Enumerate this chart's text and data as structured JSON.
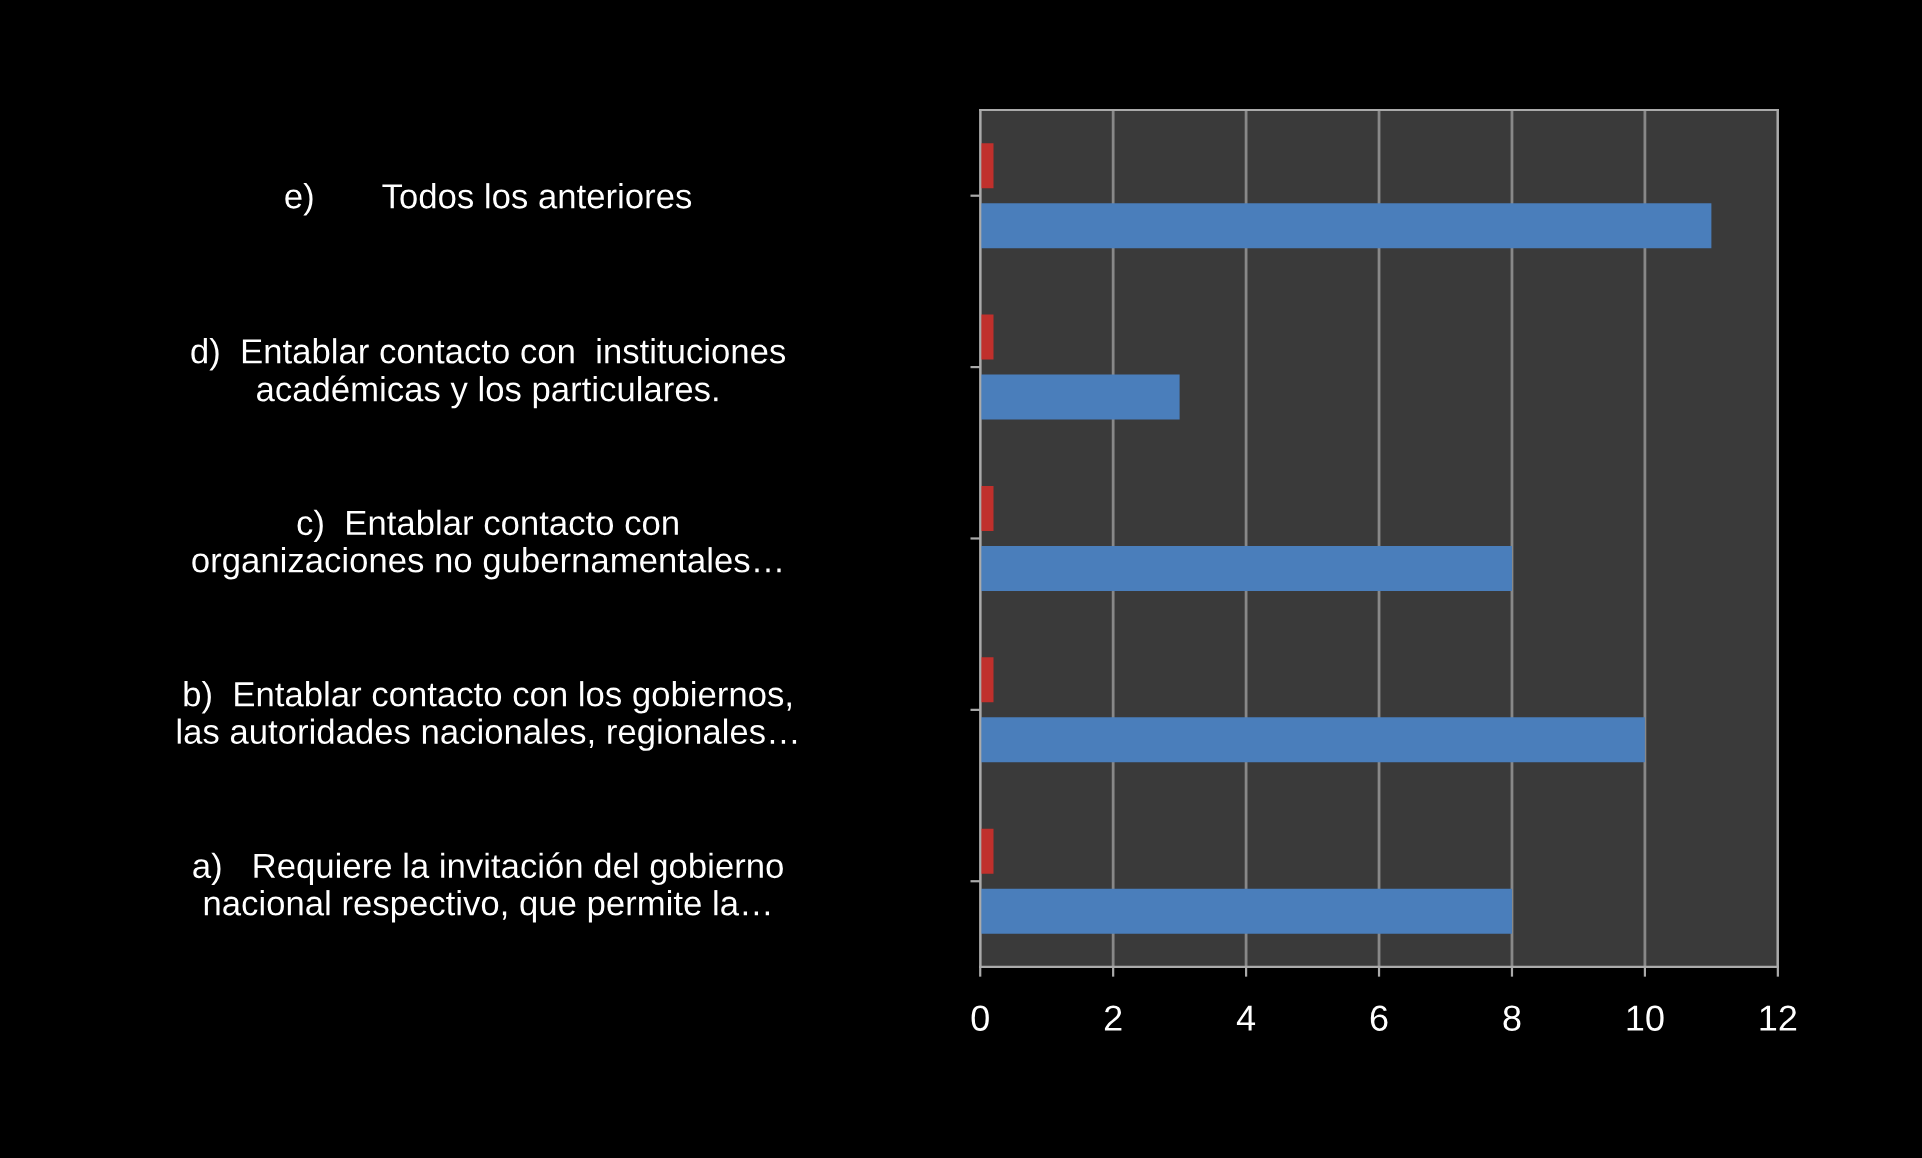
{
  "chart_data": {
    "type": "bar",
    "orientation": "horizontal",
    "categories": [
      "e)       Todos los anteriores",
      "d)  Entablar contacto con  instituciones\nacadémicas y los particulares.",
      "c)  Entablar contacto con\norganizaciones no gubernamentales…",
      "b)  Entablar contacto con los gobiernos,\nlas autoridades nacionales, regionales…",
      "a)   Requiere la invitación del gobierno\nnacional respectivo, que permite la…"
    ],
    "series": [
      {
        "color": "#c0302c",
        "values": [
          0.2,
          0.2,
          0.2,
          0.2,
          0.2
        ]
      },
      {
        "color": "#4a7ebb",
        "values": [
          11,
          3,
          8,
          10,
          8
        ]
      }
    ],
    "xlim": [
      0,
      12
    ],
    "xticks": [
      0,
      2,
      4,
      6,
      8,
      10,
      12
    ],
    "grid": "x"
  }
}
